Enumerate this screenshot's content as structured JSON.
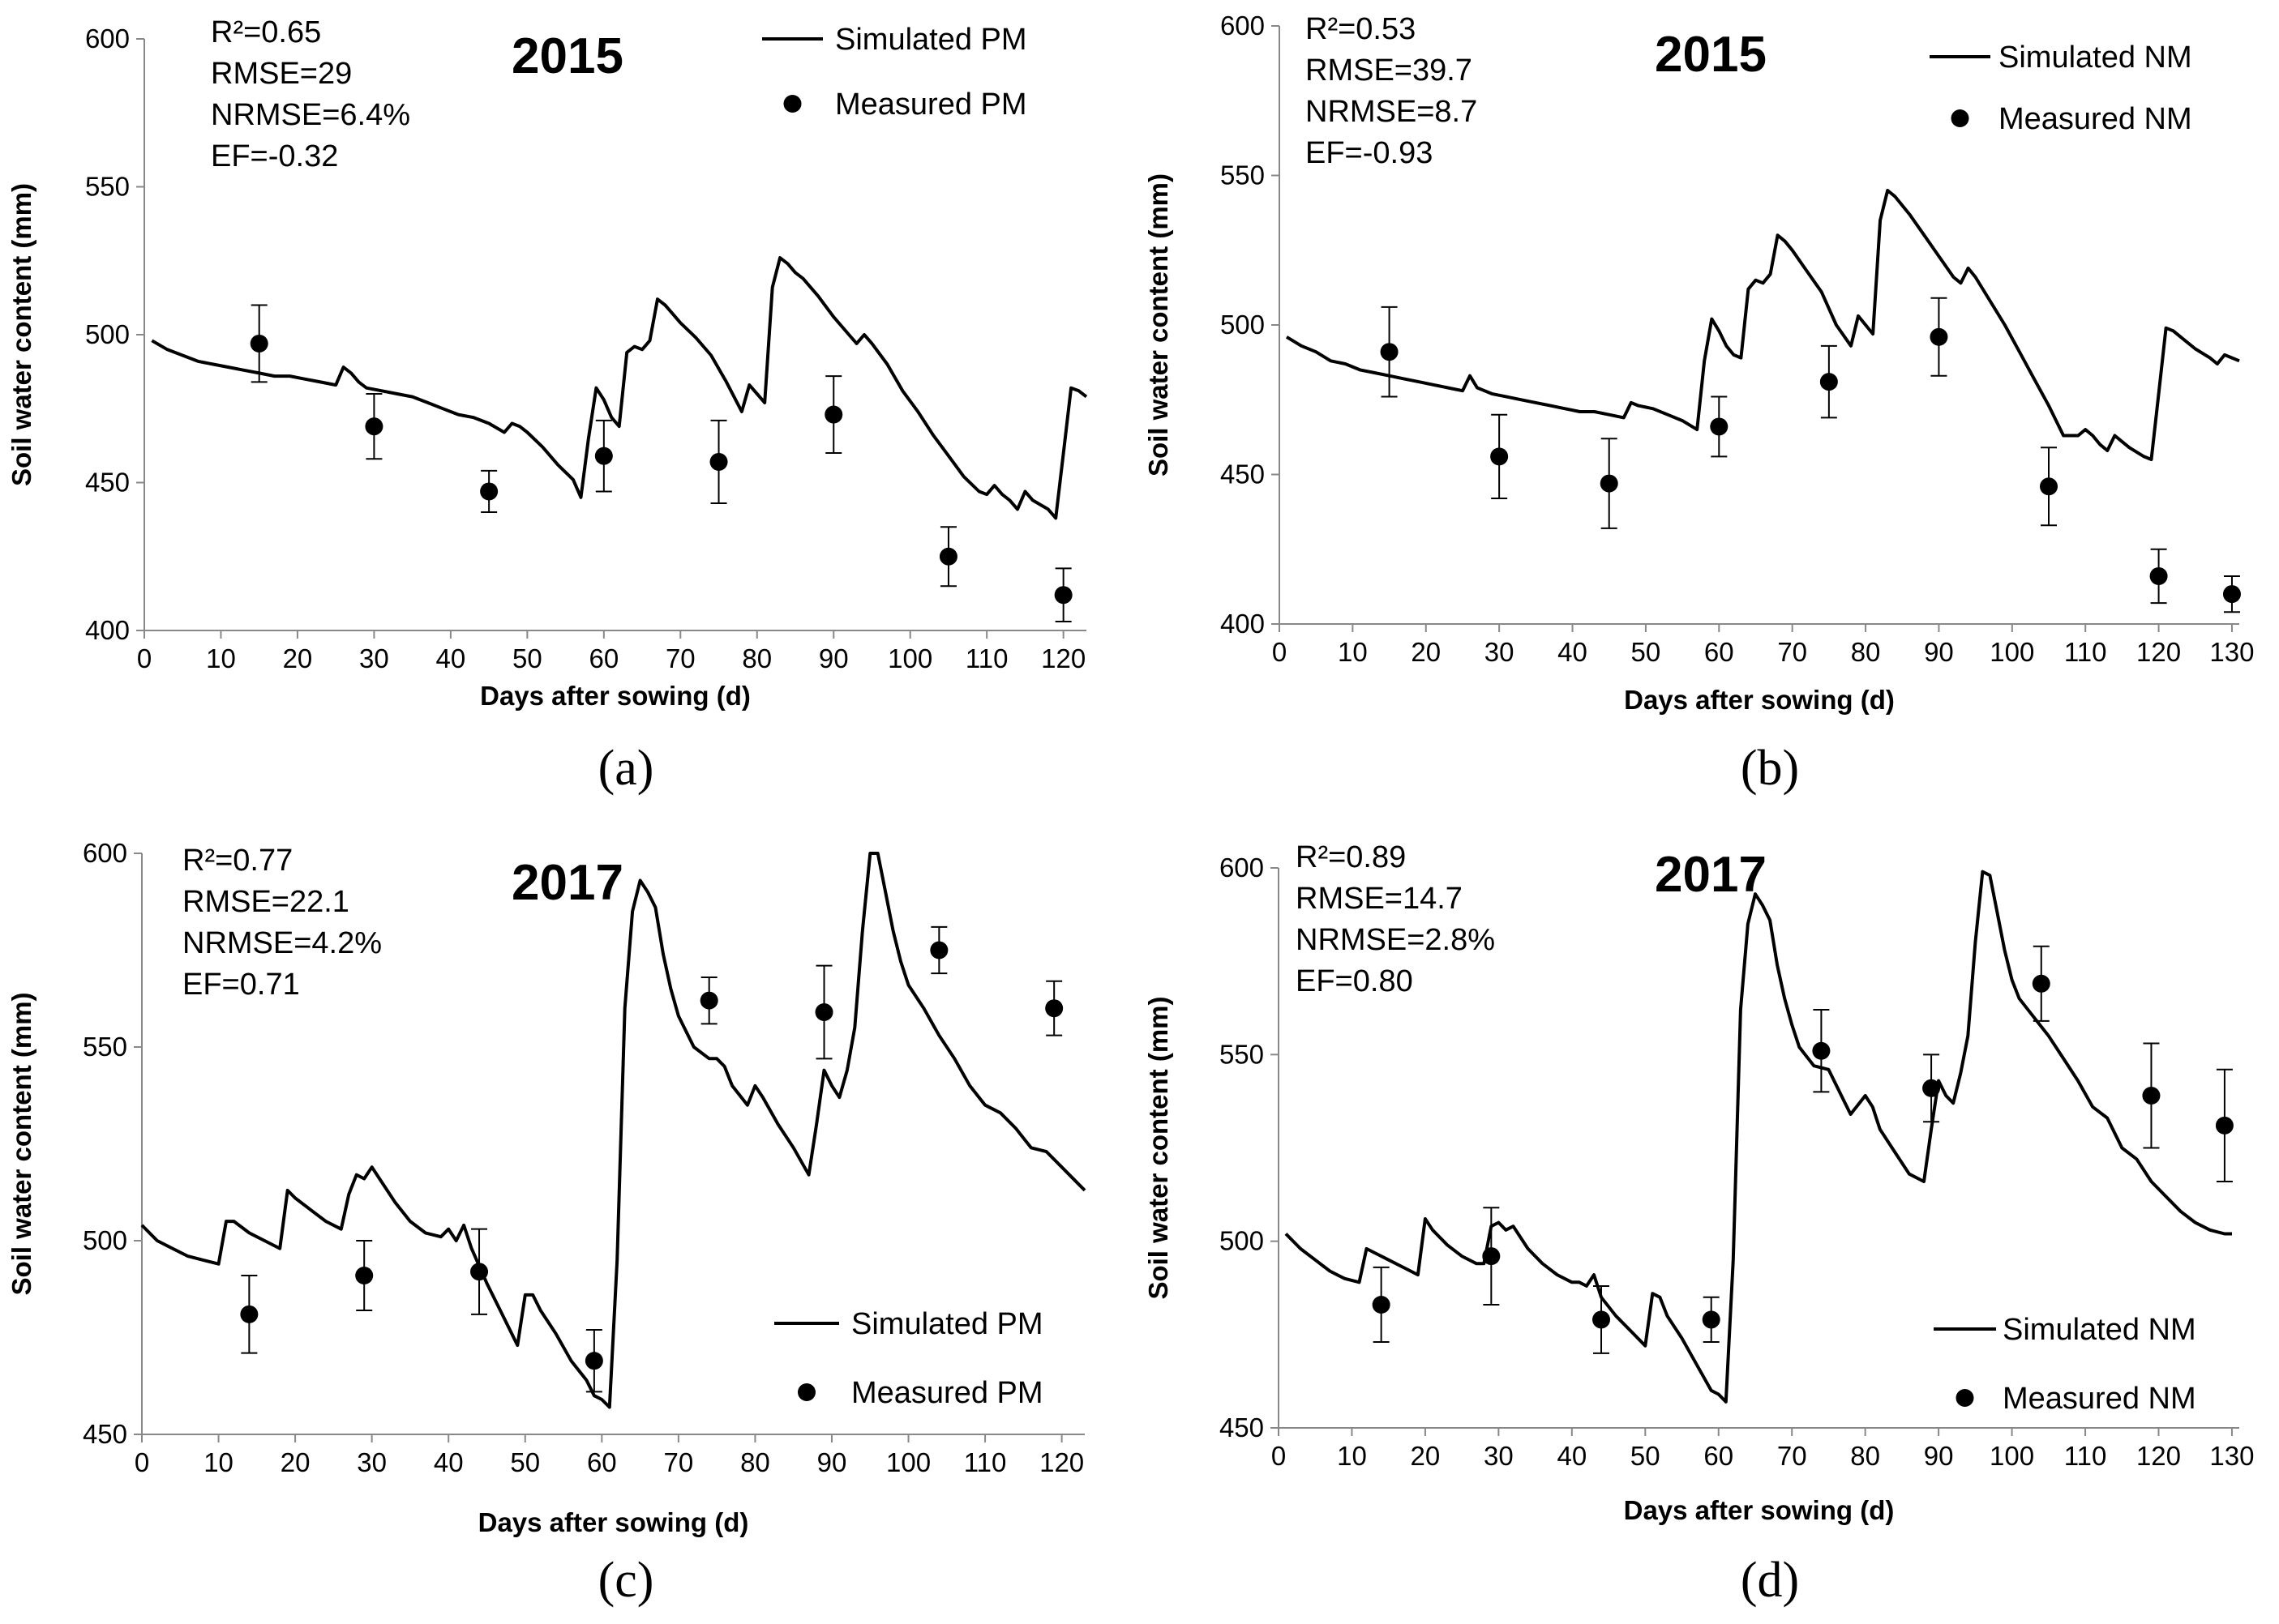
{
  "figure": {
    "panel_labels": [
      "(a)",
      "(b)",
      "(c)",
      "(d)"
    ]
  },
  "chart_data": [
    {
      "type": "line",
      "panel_label": "(a)",
      "title": "2015",
      "xlabel": "Days after sowing (d)",
      "ylabel": "Soil water content (mm)",
      "xlim": [
        0,
        123
      ],
      "ylim": [
        400,
        600
      ],
      "xticks": [
        0,
        10,
        20,
        30,
        40,
        50,
        60,
        70,
        80,
        90,
        100,
        110,
        120
      ],
      "yticks": [
        400,
        450,
        500,
        550,
        600
      ],
      "stats": [
        "R²=0.65",
        "RMSE=29",
        "NRMSE=6.4%",
        "EF=-0.32"
      ],
      "legend_position": "top-right",
      "series": [
        {
          "name": "Simulated PM",
          "kind": "line",
          "x": [
            1,
            3,
            5,
            7,
            9,
            11,
            13,
            15,
            17,
            19,
            21,
            23,
            25,
            26,
            27,
            28,
            29,
            31,
            33,
            35,
            37,
            39,
            41,
            43,
            45,
            47,
            48,
            49,
            50,
            52,
            54,
            56,
            57,
            58,
            59,
            60,
            61,
            62,
            63,
            64,
            65,
            66,
            67,
            68,
            69,
            70,
            72,
            74,
            76,
            78,
            79,
            80,
            81,
            82,
            83,
            84,
            85,
            86,
            88,
            90,
            92,
            93,
            94,
            95,
            97,
            99,
            101,
            103,
            105,
            107,
            109,
            110,
            111,
            112,
            113,
            114,
            115,
            116,
            118,
            119,
            120,
            121,
            122,
            123
          ],
          "y": [
            498,
            495,
            493,
            491,
            490,
            489,
            488,
            487,
            486,
            486,
            485,
            484,
            483,
            489,
            487,
            484,
            482,
            481,
            480,
            479,
            477,
            475,
            473,
            472,
            470,
            467,
            470,
            469,
            467,
            462,
            456,
            451,
            445,
            465,
            482,
            478,
            472,
            469,
            494,
            496,
            495,
            498,
            512,
            510,
            507,
            504,
            499,
            493,
            484,
            474,
            483,
            480,
            477,
            516,
            526,
            524,
            521,
            519,
            513,
            506,
            500,
            497,
            500,
            497,
            490,
            481,
            474,
            466,
            459,
            452,
            447,
            446,
            449,
            446,
            444,
            441,
            447,
            444,
            441,
            438,
            460,
            482,
            481,
            479
          ]
        },
        {
          "name": "Measured PM",
          "kind": "points",
          "x": [
            15,
            30,
            45,
            60,
            75,
            90,
            105,
            120
          ],
          "y": [
            497,
            469,
            447,
            459,
            457,
            473,
            425,
            412
          ],
          "err": [
            13,
            11,
            7,
            12,
            14,
            13,
            10,
            9
          ]
        }
      ]
    },
    {
      "type": "line",
      "panel_label": "(b)",
      "title": "2015",
      "xlabel": "Days after sowing (d)",
      "ylabel": "Soil water content (mm)",
      "xlim": [
        0,
        131
      ],
      "ylim": [
        400,
        600
      ],
      "xticks": [
        0,
        10,
        20,
        30,
        40,
        50,
        60,
        70,
        80,
        90,
        100,
        110,
        120,
        130
      ],
      "yticks": [
        400,
        450,
        500,
        550,
        600
      ],
      "stats": [
        "R²=0.53",
        "RMSE=39.7",
        "NRMSE=8.7",
        "EF=-0.93"
      ],
      "legend_position": "top-right",
      "series": [
        {
          "name": "Simulated NM",
          "kind": "line",
          "x": [
            1,
            3,
            5,
            7,
            9,
            11,
            13,
            15,
            17,
            19,
            21,
            23,
            25,
            26,
            27,
            28,
            29,
            31,
            33,
            35,
            37,
            39,
            41,
            43,
            45,
            47,
            48,
            49,
            51,
            53,
            55,
            57,
            58,
            59,
            60,
            61,
            62,
            63,
            64,
            65,
            66,
            67,
            68,
            69,
            70,
            72,
            74,
            76,
            78,
            79,
            80,
            81,
            82,
            83,
            84,
            85,
            86,
            88,
            90,
            92,
            93,
            94,
            95,
            97,
            99,
            101,
            103,
            105,
            107,
            109,
            110,
            111,
            112,
            113,
            114,
            115,
            116,
            118,
            119,
            120,
            121,
            122,
            123,
            125,
            127,
            128,
            129,
            130,
            131
          ],
          "y": [
            496,
            493,
            491,
            488,
            487,
            485,
            484,
            483,
            482,
            481,
            480,
            479,
            478,
            483,
            479,
            478,
            477,
            476,
            475,
            474,
            473,
            472,
            471,
            471,
            470,
            469,
            474,
            473,
            472,
            470,
            468,
            465,
            488,
            502,
            498,
            493,
            490,
            489,
            512,
            515,
            514,
            517,
            530,
            528,
            525,
            518,
            511,
            500,
            493,
            503,
            500,
            497,
            535,
            545,
            543,
            540,
            537,
            530,
            523,
            516,
            514,
            519,
            516,
            508,
            500,
            491,
            482,
            473,
            463,
            463,
            465,
            463,
            460,
            458,
            463,
            461,
            459,
            456,
            455,
            477,
            499,
            498,
            496,
            492,
            489,
            487,
            490,
            489,
            488
          ]
        },
        {
          "name": "Measured NM",
          "kind": "points",
          "x": [
            15,
            30,
            45,
            60,
            75,
            90,
            105,
            120,
            130
          ],
          "y": [
            491,
            456,
            447,
            466,
            481,
            496,
            446,
            416,
            410
          ],
          "err": [
            15,
            14,
            15,
            10,
            12,
            13,
            13,
            9,
            6
          ]
        }
      ]
    },
    {
      "type": "line",
      "panel_label": "(c)",
      "title": "2017",
      "xlabel": "Days after sowing (d)",
      "ylabel": "Soil water content (mm)",
      "xlim": [
        0,
        123
      ],
      "ylim": [
        450,
        600
      ],
      "xticks": [
        0,
        10,
        20,
        30,
        40,
        50,
        60,
        70,
        80,
        90,
        100,
        110,
        120
      ],
      "yticks": [
        450,
        500,
        550,
        600
      ],
      "stats": [
        "R²=0.77",
        "RMSE=22.1",
        "NRMSE=4.2%",
        "EF=0.71"
      ],
      "legend_position": "bottom-right",
      "series": [
        {
          "name": "Simulated PM",
          "kind": "line",
          "x": [
            0,
            2,
            4,
            6,
            8,
            10,
            11,
            12,
            14,
            16,
            18,
            19,
            20,
            22,
            24,
            26,
            27,
            28,
            29,
            30,
            31,
            33,
            35,
            37,
            39,
            40,
            41,
            42,
            43,
            45,
            47,
            49,
            50,
            51,
            52,
            54,
            56,
            58,
            59,
            60,
            61,
            62,
            63,
            64,
            65,
            66,
            67,
            68,
            69,
            70,
            72,
            74,
            75,
            76,
            77,
            79,
            80,
            81,
            83,
            85,
            87,
            88,
            89,
            90,
            91,
            92,
            93,
            94,
            95,
            96,
            97,
            98,
            99,
            100,
            102,
            104,
            106,
            108,
            110,
            112,
            114,
            116,
            118,
            120,
            122,
            123
          ],
          "y": [
            504,
            500,
            498,
            496,
            495,
            494,
            505,
            505,
            502,
            500,
            498,
            513,
            511,
            508,
            505,
            503,
            512,
            517,
            516,
            519,
            516,
            510,
            505,
            502,
            501,
            503,
            500,
            504,
            498,
            489,
            481,
            473,
            486,
            486,
            482,
            476,
            469,
            464,
            460,
            459,
            457,
            495,
            560,
            585,
            593,
            590,
            586,
            574,
            565,
            558,
            550,
            547,
            547,
            545,
            540,
            535,
            540,
            537,
            530,
            524,
            517,
            530,
            544,
            540,
            537,
            544,
            555,
            580,
            600,
            600,
            590,
            580,
            572,
            566,
            560,
            553,
            547,
            540,
            535,
            533,
            529,
            524,
            523,
            519,
            515,
            513
          ]
        },
        {
          "name": "Measured PM",
          "kind": "points",
          "x": [
            14,
            29,
            44,
            59,
            74,
            89,
            104,
            119
          ],
          "y": [
            481,
            491,
            492,
            469,
            562,
            559,
            575,
            560
          ],
          "err": [
            10,
            9,
            11,
            8,
            6,
            12,
            6,
            7
          ]
        }
      ]
    },
    {
      "type": "line",
      "panel_label": "(d)",
      "title": "2017",
      "xlabel": "Days after sowing (d)",
      "ylabel": "Soil water content (mm)",
      "xlim": [
        0,
        131
      ],
      "ylim": [
        450,
        600
      ],
      "xticks": [
        0,
        10,
        20,
        30,
        40,
        50,
        60,
        70,
        80,
        90,
        100,
        110,
        120,
        130
      ],
      "yticks": [
        450,
        500,
        550,
        600
      ],
      "stats": [
        "R²=0.89",
        "RMSE=14.7",
        "NRMSE=2.8%",
        "EF=0.80"
      ],
      "legend_position": "bottom-right",
      "series": [
        {
          "name": "Simulated NM",
          "kind": "line",
          "x": [
            1,
            3,
            5,
            7,
            9,
            11,
            12,
            13,
            15,
            17,
            19,
            20,
            21,
            23,
            25,
            27,
            28,
            29,
            30,
            31,
            32,
            34,
            36,
            38,
            40,
            41,
            42,
            43,
            44,
            46,
            48,
            50,
            51,
            52,
            53,
            55,
            57,
            59,
            60,
            61,
            62,
            63,
            64,
            65,
            66,
            67,
            68,
            69,
            70,
            71,
            73,
            75,
            76,
            77,
            78,
            80,
            81,
            82,
            84,
            86,
            88,
            89,
            90,
            91,
            92,
            93,
            94,
            95,
            96,
            97,
            98,
            99,
            100,
            101,
            103,
            105,
            107,
            109,
            111,
            113,
            115,
            117,
            119,
            121,
            123,
            125,
            127,
            129,
            130
          ],
          "y": [
            502,
            498,
            495,
            492,
            490,
            489,
            498,
            497,
            495,
            493,
            491,
            506,
            503,
            499,
            496,
            494,
            494,
            504,
            505,
            503,
            504,
            498,
            494,
            491,
            489,
            489,
            488,
            491,
            485,
            480,
            476,
            472,
            486,
            485,
            480,
            474,
            467,
            460,
            459,
            457,
            495,
            562,
            585,
            593,
            590,
            586,
            574,
            565,
            558,
            552,
            547,
            546,
            542,
            538,
            534,
            539,
            536,
            530,
            524,
            518,
            516,
            530,
            543,
            539,
            537,
            545,
            555,
            580,
            599,
            598,
            588,
            578,
            570,
            565,
            560,
            555,
            549,
            543,
            536,
            533,
            525,
            522,
            516,
            512,
            508,
            505,
            503,
            502,
            502
          ]
        },
        {
          "name": "Measured NM",
          "kind": "points",
          "x": [
            14,
            29,
            44,
            59,
            74,
            89,
            104,
            119,
            129
          ],
          "y": [
            483,
            496,
            479,
            479,
            551,
            541,
            569,
            539,
            531
          ],
          "err": [
            10,
            13,
            9,
            6,
            11,
            9,
            10,
            14,
            15
          ]
        }
      ]
    }
  ]
}
